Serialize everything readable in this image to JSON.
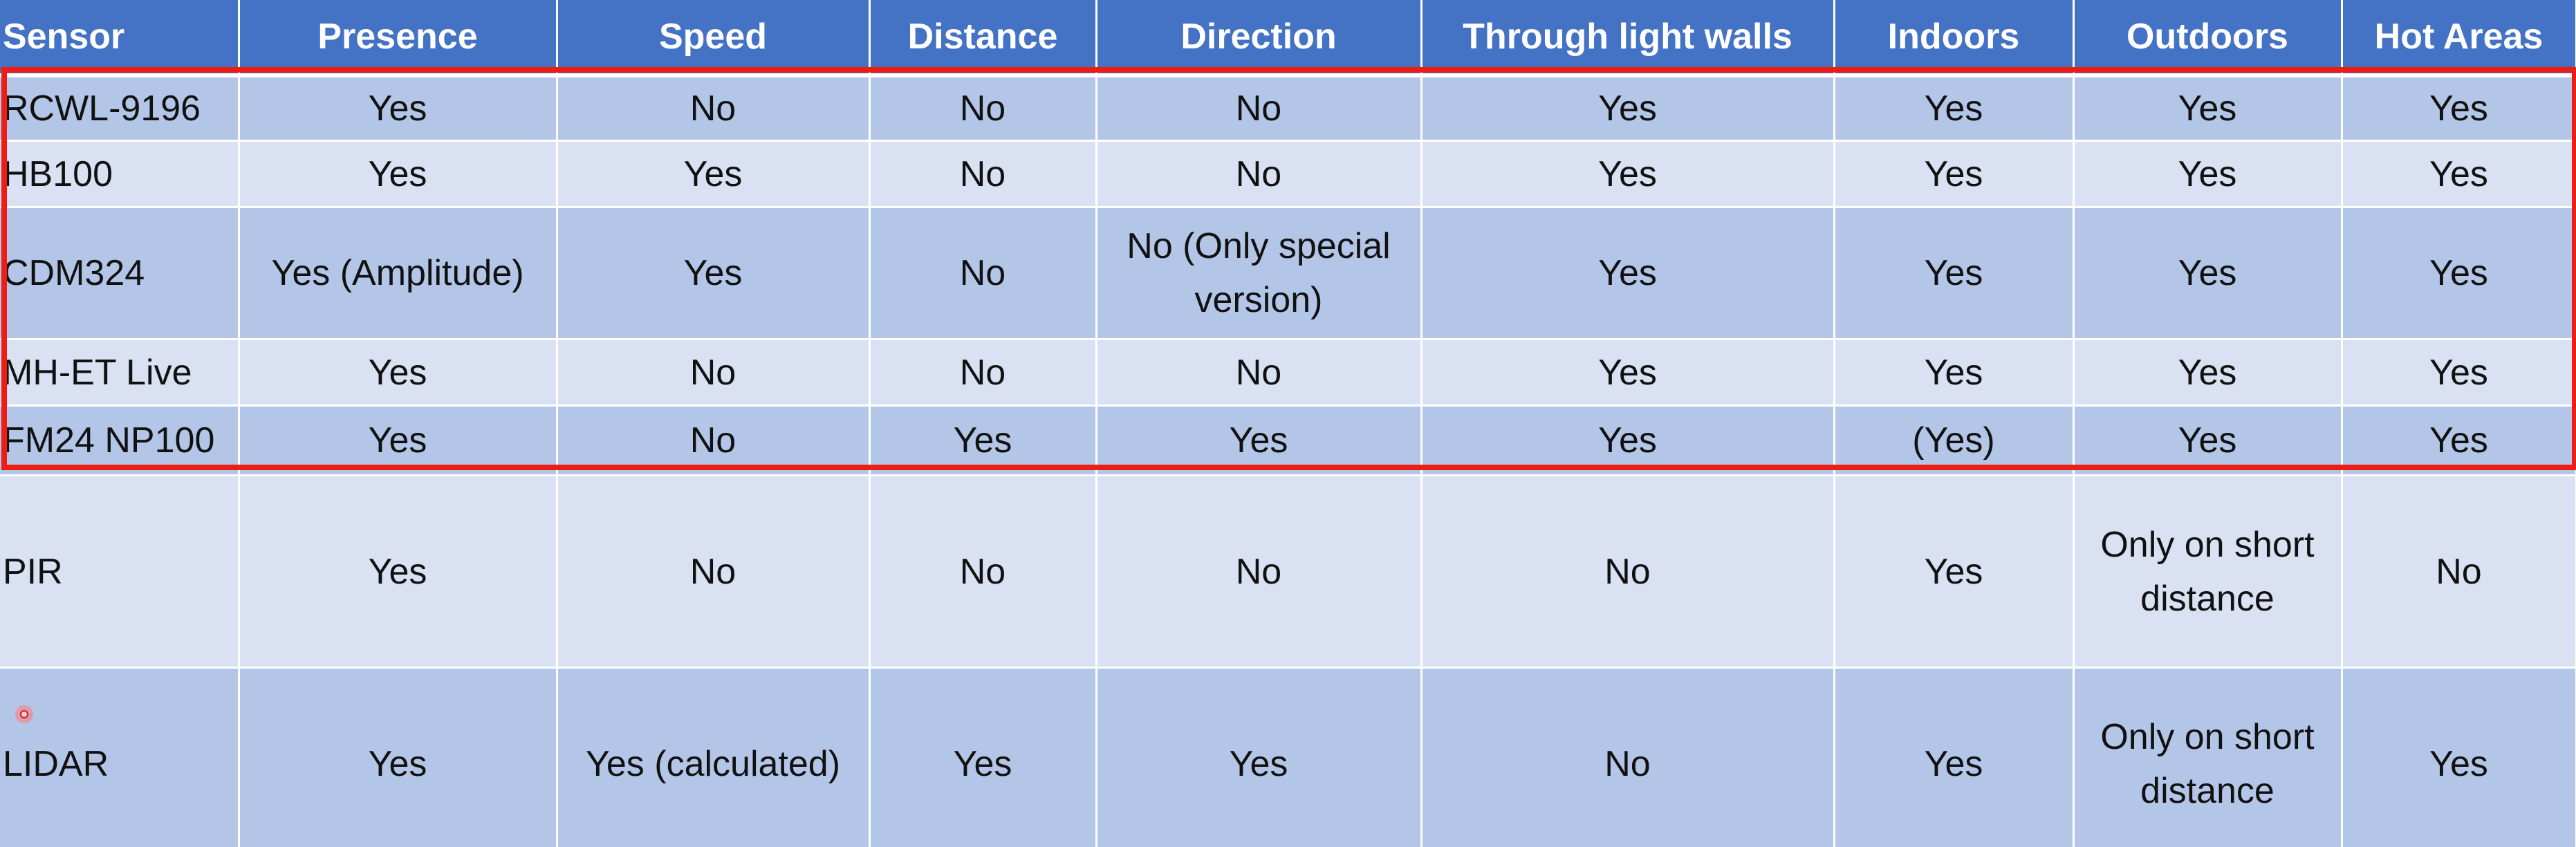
{
  "table": {
    "headers": [
      "Sensor",
      "Presence",
      "Speed",
      "Distance",
      "Direction",
      "Through light walls",
      "Indoors",
      "Outdoors",
      "Hot Areas"
    ],
    "rows": [
      [
        "RCWL-9196",
        "Yes",
        "No",
        "No",
        "No",
        "Yes",
        "Yes",
        "Yes",
        "Yes"
      ],
      [
        "HB100",
        "Yes",
        "Yes",
        "No",
        "No",
        "Yes",
        "Yes",
        "Yes",
        "Yes"
      ],
      [
        "CDM324",
        "Yes (Amplitude)",
        "Yes",
        "No",
        "No (Only special version)",
        "Yes",
        "Yes",
        "Yes",
        "Yes"
      ],
      [
        "MH-ET Live",
        "Yes",
        "No",
        "No",
        "No",
        "Yes",
        "Yes",
        "Yes",
        "Yes"
      ],
      [
        "FM24 NP100",
        "Yes",
        "No",
        "Yes",
        "Yes",
        "Yes",
        "(Yes)",
        "Yes",
        "Yes"
      ],
      [
        "PIR",
        "Yes",
        "No",
        "No",
        "No",
        "No",
        "Yes",
        "Only on short distance",
        "No"
      ],
      [
        "LIDAR",
        "Yes",
        "Yes (calculated)",
        "Yes",
        "Yes",
        "No",
        "Yes",
        "Only on short distance",
        "Yes"
      ]
    ]
  },
  "colors": {
    "header_bg": "#4472c4",
    "row_dark": "#b4c6e7",
    "row_light": "#d9e1f2",
    "highlight_border": "#ee1c13"
  }
}
